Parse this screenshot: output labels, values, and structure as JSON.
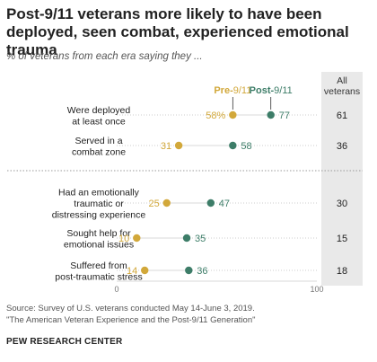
{
  "title": "Post-9/11 veterans more likely to have been deployed, seen combat, experienced emotional trauma",
  "subtitle": "% of veterans from each era saying they ...",
  "source": "Source: Survey of U.S. veterans conducted May 14-June 3, 2019.",
  "source_note": "\"The American Veteran Experience and the Post-9/11 Generation\"",
  "brand": "PEW RESEARCH CENTER",
  "colors": {
    "pre": "#d2a83a",
    "post": "#3d7d68",
    "grid": "#cccccc",
    "panel": "#e9e9e9"
  },
  "chart_data": {
    "type": "dot",
    "xlim": [
      0,
      100
    ],
    "tick_labels": [
      "0",
      "100"
    ],
    "legend": {
      "pre_prefix": "Pre-",
      "pre_suffix": "9/11",
      "post_prefix": "Post-",
      "post_suffix": "9/11"
    },
    "all_header": [
      "All",
      "veterans"
    ],
    "categories": [
      [
        "Were deployed",
        "at least once"
      ],
      [
        "Served in a",
        "combat zone"
      ],
      [
        "Had an emotionally",
        "traumatic or",
        "distressing experience"
      ],
      [
        "Sought help for",
        "emotional issues"
      ],
      [
        "Suffered from",
        "post-traumatic stress"
      ]
    ],
    "series": [
      {
        "name": "Pre-9/11",
        "values": [
          58,
          31,
          25,
          10,
          14
        ],
        "labels": [
          "58%",
          "31",
          "25",
          "10",
          "14"
        ]
      },
      {
        "name": "Post-9/11",
        "values": [
          77,
          58,
          47,
          35,
          36
        ],
        "labels": [
          "77",
          "58",
          "47",
          "35",
          "36"
        ]
      }
    ],
    "all_veterans": [
      "61",
      "36",
      "30",
      "15",
      "18"
    ]
  }
}
